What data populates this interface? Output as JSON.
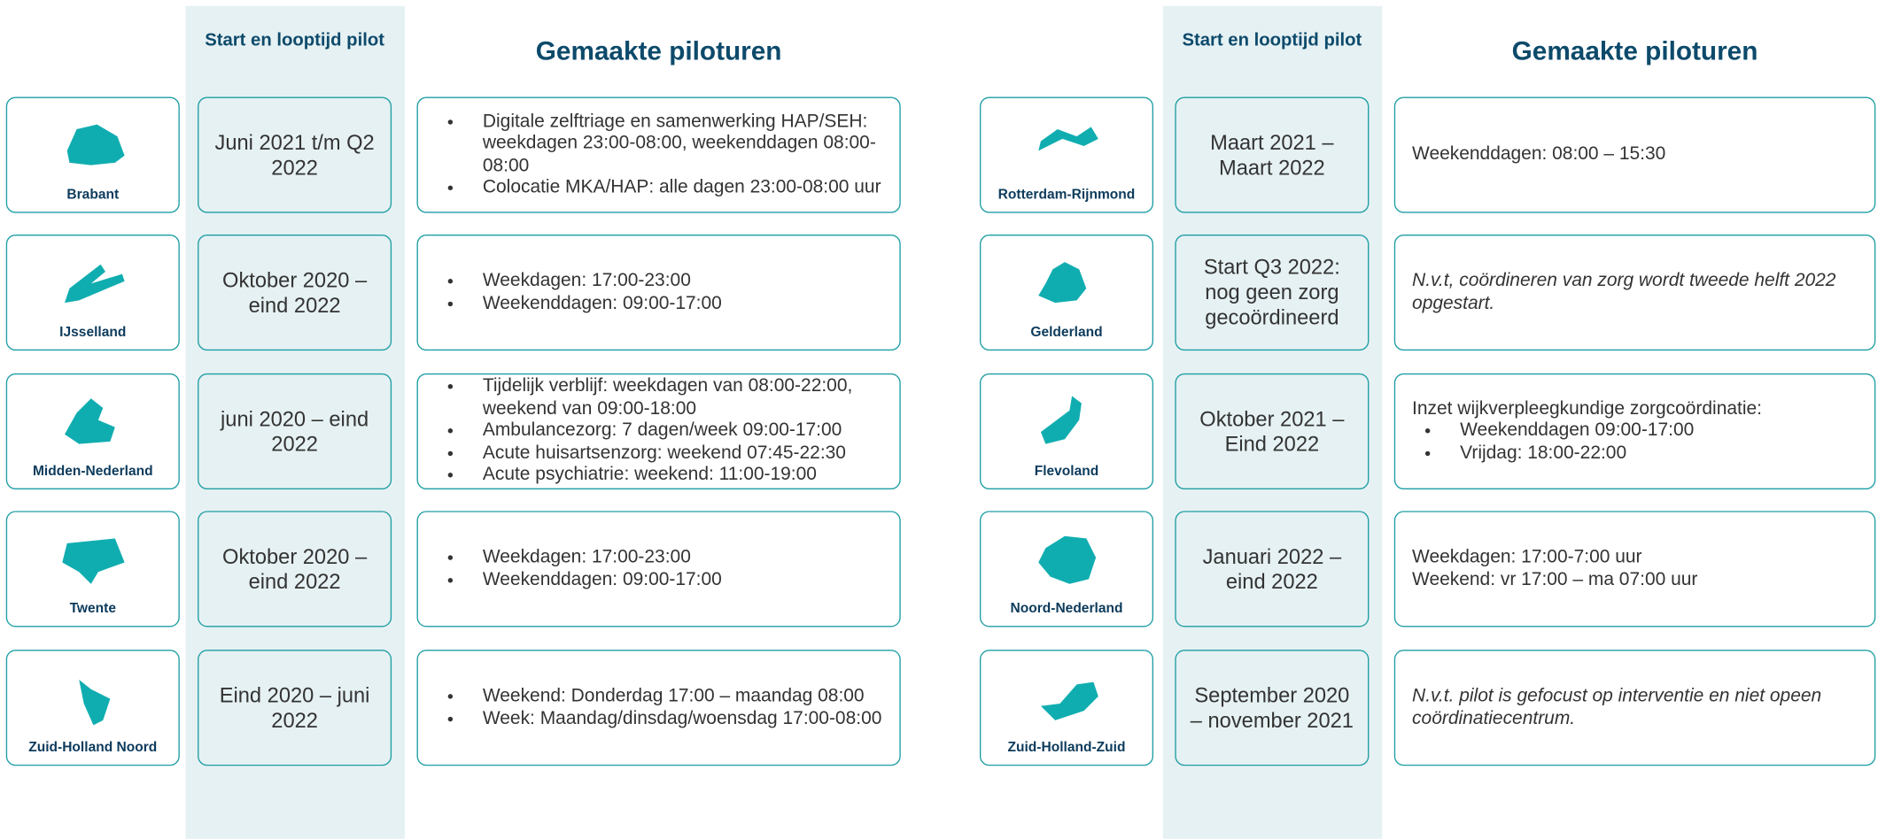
{
  "panels": [
    {
      "header_period": "Start en looptijd pilot",
      "header_hours": "Gemaakte piloturen",
      "rows": [
        {
          "region": "Brabant",
          "period": "Juni 2021 t/m Q2 2022",
          "details": {
            "bullets": [
              "Digitale zelftriage en samenwerking HAP/SEH: weekdagen 23:00-08:00, weekenddagen 08:00-08:00",
              "Colocatie MKA/HAP: alle dagen 23:00-08:00 uur"
            ]
          }
        },
        {
          "region": "IJsselland",
          "period": "Oktober 2020 – eind 2022",
          "details": {
            "bullets": [
              "Weekdagen: 17:00-23:00",
              "Weekenddagen: 09:00-17:00"
            ]
          }
        },
        {
          "region": "Midden-Nederland",
          "period": "juni 2020 – eind 2022",
          "details": {
            "bullets": [
              "Tijdelijk verblijf: weekdagen van 08:00-22:00, weekend van 09:00-18:00",
              "Ambulancezorg: 7 dagen/week 09:00-17:00",
              "Acute huisartsenzorg: weekend 07:45-22:30",
              "Acute psychiatrie: weekend: 11:00-19:00"
            ]
          }
        },
        {
          "region": "Twente",
          "period": "Oktober 2020 – eind 2022",
          "details": {
            "bullets": [
              "Weekdagen: 17:00-23:00",
              "Weekenddagen: 09:00-17:00"
            ]
          }
        },
        {
          "region": "Zuid-Holland Noord",
          "period": "Eind 2020 – juni 2022",
          "details": {
            "bullets": [
              "Weekend: Donderdag 17:00 – maandag 08:00",
              "Week: Maandag/dinsdag/woensdag 17:00-08:00"
            ]
          }
        }
      ]
    },
    {
      "header_period": "Start en looptijd pilot",
      "header_hours": "Gemaakte piloturen",
      "rows": [
        {
          "region": "Rotterdam-Rijnmond",
          "period": "Maart 2021 – Maart 2022",
          "details": {
            "lines": [
              "Weekenddagen: 08:00 – 15:30"
            ]
          }
        },
        {
          "region": "Gelderland",
          "period": "Start Q3 2022: nog geen zorg gecoördineerd",
          "details": {
            "italic": "N.v.t, coördineren van zorg wordt tweede helft 2022 opgestart."
          }
        },
        {
          "region": "Flevoland",
          "period": "Oktober 2021 – Eind 2022",
          "details": {
            "intro": "Inzet wijkverpleegkundige zorgcoördinatie:",
            "bullets": [
              "Weekenddagen 09:00-17:00",
              "Vrijdag: 18:00-22:00"
            ]
          }
        },
        {
          "region": "Noord-Nederland",
          "period": "Januari 2022 – eind 2022",
          "details": {
            "lines": [
              "Weekdagen: 17:00-7:00 uur",
              "Weekend: vr 17:00 – ma 07:00 uur"
            ]
          }
        },
        {
          "region": "Zuid-Holland-Zuid",
          "period": "September 2020 – november 2021",
          "details": {
            "italic": "N.v.t. pilot is gefocust op interventie en niet opeen coördinatiecentrum."
          }
        }
      ]
    }
  ]
}
